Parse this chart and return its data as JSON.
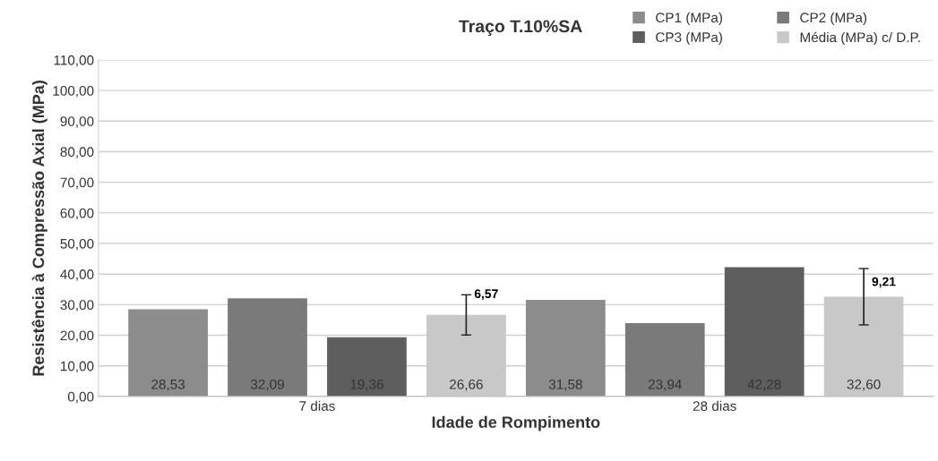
{
  "chart_data": {
    "type": "bar",
    "title": "Traço T.10%SA",
    "xlabel": "Idade de Rompimento",
    "ylabel": "Resistência à Compressão Axial (MPa)",
    "categories": [
      "7 dias",
      "28 dias"
    ],
    "series": [
      {
        "name": "CP1 (MPa)",
        "color": "#8c8c8c",
        "values": [
          28.53,
          31.58
        ],
        "value_labels": [
          "28,53",
          "31,58"
        ]
      },
      {
        "name": "CP2 (MPa)",
        "color": "#7a7a7a",
        "values": [
          32.09,
          23.94
        ],
        "value_labels": [
          "32,09",
          "23,94"
        ]
      },
      {
        "name": "CP3 (MPa)",
        "color": "#5e5e5e",
        "values": [
          19.36,
          42.28
        ],
        "value_labels": [
          "19,36",
          "42,28"
        ]
      },
      {
        "name": "Média (MPa) c/ D.P.",
        "color": "#c8c8c8",
        "values": [
          26.66,
          32.6
        ],
        "value_labels": [
          "26,66",
          "32,60"
        ],
        "errors": [
          6.57,
          9.21
        ]
      }
    ],
    "annotations": [
      "6,57",
      "9,21"
    ],
    "ylim": [
      0,
      110
    ],
    "yticks": [
      {
        "value": 0,
        "label": "0,00"
      },
      {
        "value": 10,
        "label": "10,00"
      },
      {
        "value": 20,
        "label": "20,00"
      },
      {
        "value": 30,
        "label": "30,00"
      },
      {
        "value": 40,
        "label": "40,00"
      },
      {
        "value": 50,
        "label": "50,00"
      },
      {
        "value": 60,
        "label": "60,00"
      },
      {
        "value": 70,
        "label": "70,00"
      },
      {
        "value": 80,
        "label": "80,00"
      },
      {
        "value": 90,
        "label": "90,00"
      },
      {
        "value": 100,
        "label": "100,00"
      },
      {
        "value": 110,
        "label": "110,00"
      }
    ],
    "grid": "y",
    "legend": "top right"
  }
}
